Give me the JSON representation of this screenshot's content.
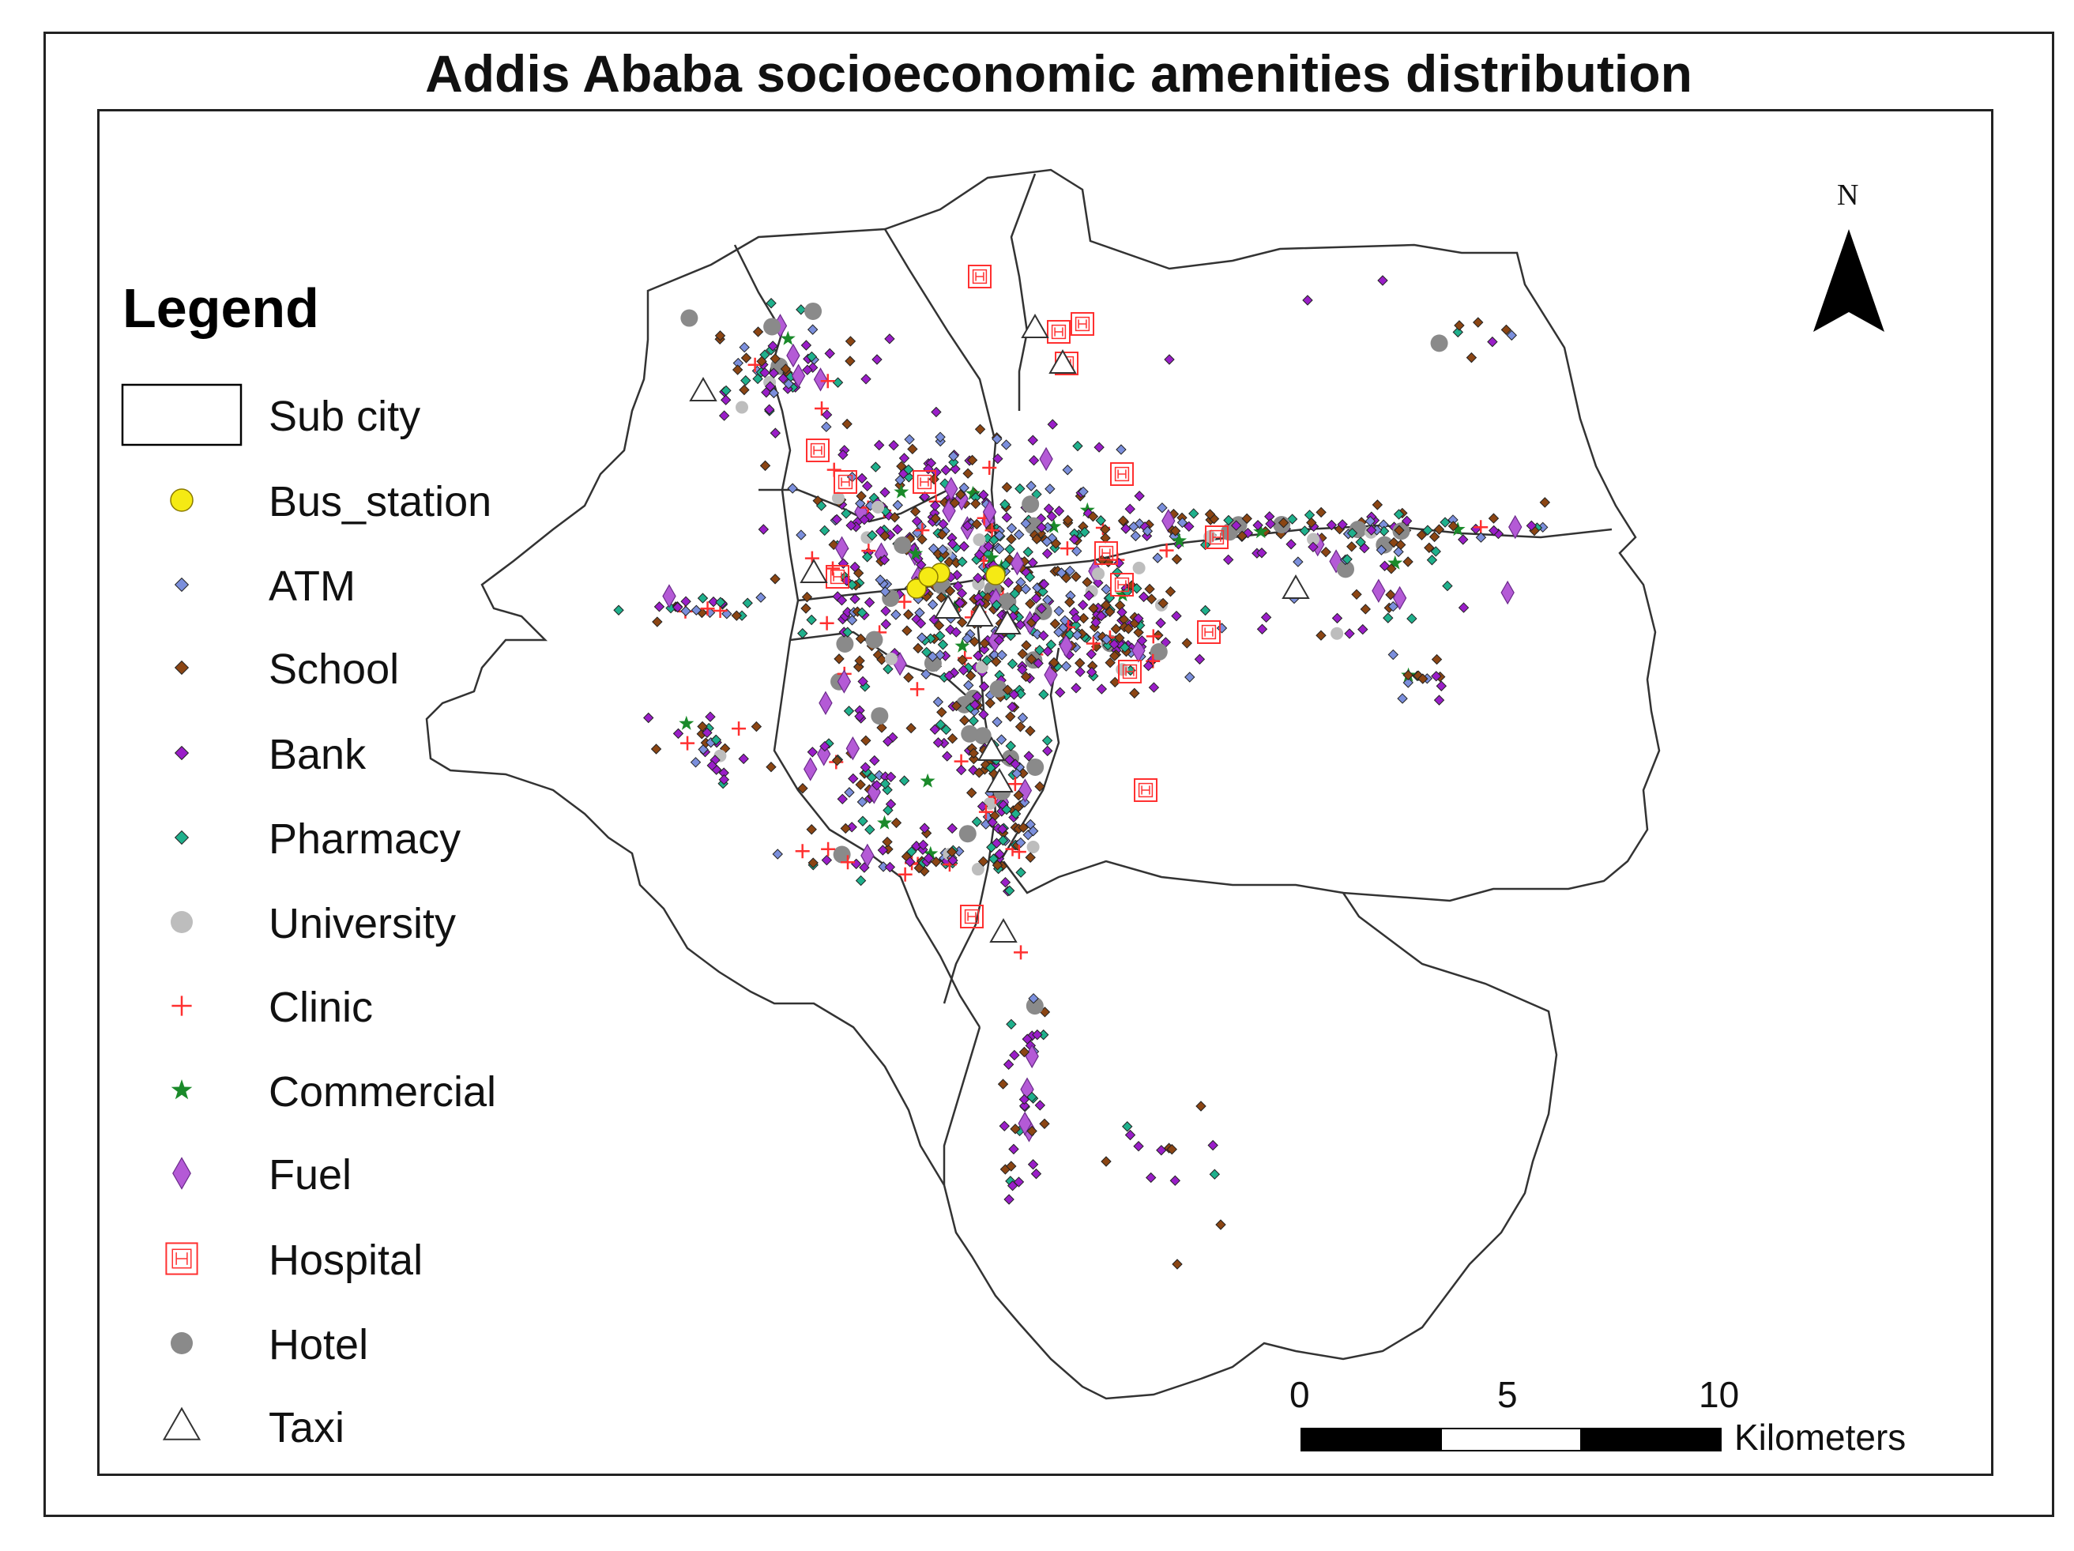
{
  "title": "Addis Ababa socioeconomic amenities distribution",
  "legend": {
    "title": "Legend",
    "items": [
      {
        "id": "subcity",
        "label": "Sub city",
        "symbol": "rectangle-outline",
        "color": "#000000"
      },
      {
        "id": "bus",
        "label": "Bus_station",
        "symbol": "circle",
        "color": "#f5ea14"
      },
      {
        "id": "atm",
        "label": "ATM",
        "symbol": "small-diamond",
        "color": "#7b8fdc"
      },
      {
        "id": "school",
        "label": "School",
        "symbol": "small-diamond",
        "color": "#8b4513"
      },
      {
        "id": "bank",
        "label": "Bank",
        "symbol": "small-diamond",
        "color": "#9a1ec8"
      },
      {
        "id": "pharmacy",
        "label": "Pharmacy",
        "symbol": "small-diamond",
        "color": "#1fb08c"
      },
      {
        "id": "university",
        "label": "University",
        "symbol": "circle",
        "color": "#bdbdbd"
      },
      {
        "id": "clinic",
        "label": "Clinic",
        "symbol": "cross",
        "color": "#ff3030"
      },
      {
        "id": "commercial",
        "label": "Commercial",
        "symbol": "star",
        "color": "#1a8a2a"
      },
      {
        "id": "fuel",
        "label": "Fuel",
        "symbol": "tall-diamond",
        "color": "#b45ad6"
      },
      {
        "id": "hospital",
        "label": "Hospital",
        "symbol": "boxed-h",
        "color": "#ff3030"
      },
      {
        "id": "hotel",
        "label": "Hotel",
        "symbol": "circle",
        "color": "#8a8a8a"
      },
      {
        "id": "taxi",
        "label": "Taxi",
        "symbol": "triangle-outline",
        "color": "#333333"
      }
    ]
  },
  "north_arrow": {
    "label": "N"
  },
  "scale_bar": {
    "ticks": [
      "0",
      "5",
      "10"
    ],
    "unit": "Kilometers"
  }
}
